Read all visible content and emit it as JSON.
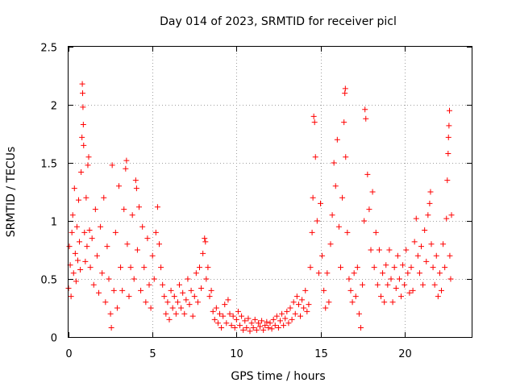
{
  "chart_data": {
    "type": "scatter",
    "title": "Day 014 of 2023, SRMTID for receiver picl",
    "xlabel": "GPS time / hours",
    "ylabel": "SRMTID / TECUs",
    "xlim": [
      0,
      24
    ],
    "ylim": [
      0,
      2.5
    ],
    "xticks": [
      0,
      5,
      10,
      15,
      20
    ],
    "xtick_labels": [
      "0",
      "5",
      "10",
      "15",
      "20"
    ],
    "yticks": [
      0,
      0.5,
      1,
      1.5,
      2,
      2.5
    ],
    "ytick_labels": [
      "0",
      "0.5",
      "1",
      "1.5",
      "2",
      "2.5"
    ],
    "grid": true,
    "marker": "+",
    "color": "#ff0000",
    "series": [
      {
        "name": "SRMTID",
        "points": [
          [
            0.0,
            0.42
          ],
          [
            0.05,
            0.78
          ],
          [
            0.1,
            0.62
          ],
          [
            0.15,
            0.35
          ],
          [
            0.2,
            0.9
          ],
          [
            0.25,
            1.05
          ],
          [
            0.3,
            0.55
          ],
          [
            0.35,
            1.28
          ],
          [
            0.4,
            0.72
          ],
          [
            0.45,
            0.48
          ],
          [
            0.5,
            0.95
          ],
          [
            0.55,
            0.66
          ],
          [
            0.6,
            1.18
          ],
          [
            0.65,
            0.82
          ],
          [
            0.7,
            0.58
          ],
          [
            0.75,
            1.42
          ],
          [
            0.8,
            1.72
          ],
          [
            0.82,
            2.18
          ],
          [
            0.84,
            2.1
          ],
          [
            0.86,
            1.98
          ],
          [
            0.88,
            1.83
          ],
          [
            0.9,
            1.65
          ],
          [
            0.95,
            0.9
          ],
          [
            1.0,
            0.65
          ],
          [
            1.05,
            1.2
          ],
          [
            1.1,
            0.78
          ],
          [
            1.15,
            1.48
          ],
          [
            1.2,
            1.55
          ],
          [
            1.25,
            0.92
          ],
          [
            1.3,
            0.6
          ],
          [
            1.4,
            0.85
          ],
          [
            1.5,
            0.45
          ],
          [
            1.6,
            1.1
          ],
          [
            1.7,
            0.7
          ],
          [
            1.8,
            0.38
          ],
          [
            1.9,
            0.95
          ],
          [
            2.0,
            0.55
          ],
          [
            2.1,
            1.2
          ],
          [
            2.2,
            0.3
          ],
          [
            2.3,
            0.78
          ],
          [
            2.4,
            0.5
          ],
          [
            2.5,
            0.2
          ],
          [
            2.55,
            0.08
          ],
          [
            2.6,
            1.48
          ],
          [
            2.7,
            0.4
          ],
          [
            2.8,
            0.9
          ],
          [
            2.9,
            0.25
          ],
          [
            3.0,
            1.3
          ],
          [
            3.1,
            0.6
          ],
          [
            3.2,
            0.4
          ],
          [
            3.3,
            1.1
          ],
          [
            3.4,
            1.45
          ],
          [
            3.45,
            1.52
          ],
          [
            3.5,
            0.8
          ],
          [
            3.6,
            0.35
          ],
          [
            3.7,
            0.6
          ],
          [
            3.8,
            1.05
          ],
          [
            3.9,
            0.5
          ],
          [
            4.0,
            1.35
          ],
          [
            4.05,
            1.28
          ],
          [
            4.1,
            0.75
          ],
          [
            4.2,
            1.12
          ],
          [
            4.3,
            0.4
          ],
          [
            4.4,
            0.95
          ],
          [
            4.5,
            0.6
          ],
          [
            4.6,
            0.3
          ],
          [
            4.7,
            0.85
          ],
          [
            4.8,
            0.45
          ],
          [
            4.9,
            0.25
          ],
          [
            5.0,
            0.7
          ],
          [
            5.1,
            0.5
          ],
          [
            5.2,
            0.9
          ],
          [
            5.3,
            1.12
          ],
          [
            5.4,
            0.8
          ],
          [
            5.5,
            0.6
          ],
          [
            5.6,
            0.45
          ],
          [
            5.7,
            0.35
          ],
          [
            5.8,
            0.2
          ],
          [
            5.9,
            0.3
          ],
          [
            6.0,
            0.15
          ],
          [
            6.1,
            0.4
          ],
          [
            6.2,
            0.25
          ],
          [
            6.3,
            0.35
          ],
          [
            6.4,
            0.2
          ],
          [
            6.5,
            0.3
          ],
          [
            6.6,
            0.45
          ],
          [
            6.7,
            0.25
          ],
          [
            6.8,
            0.38
          ],
          [
            6.9,
            0.2
          ],
          [
            7.0,
            0.32
          ],
          [
            7.1,
            0.5
          ],
          [
            7.2,
            0.28
          ],
          [
            7.3,
            0.4
          ],
          [
            7.4,
            0.18
          ],
          [
            7.5,
            0.35
          ],
          [
            7.6,
            0.55
          ],
          [
            7.7,
            0.3
          ],
          [
            7.8,
            0.6
          ],
          [
            7.9,
            0.42
          ],
          [
            8.0,
            0.72
          ],
          [
            8.1,
            0.85
          ],
          [
            8.15,
            0.82
          ],
          [
            8.2,
            0.5
          ],
          [
            8.3,
            0.6
          ],
          [
            8.4,
            0.35
          ],
          [
            8.5,
            0.4
          ],
          [
            8.6,
            0.22
          ],
          [
            8.7,
            0.15
          ],
          [
            8.8,
            0.25
          ],
          [
            8.9,
            0.12
          ],
          [
            9.0,
            0.2
          ],
          [
            9.1,
            0.08
          ],
          [
            9.2,
            0.18
          ],
          [
            9.3,
            0.28
          ],
          [
            9.4,
            0.12
          ],
          [
            9.5,
            0.32
          ],
          [
            9.6,
            0.2
          ],
          [
            9.7,
            0.1
          ],
          [
            9.8,
            0.18
          ],
          [
            9.9,
            0.08
          ],
          [
            10.0,
            0.15
          ],
          [
            10.1,
            0.22
          ],
          [
            10.2,
            0.1
          ],
          [
            10.3,
            0.18
          ],
          [
            10.4,
            0.06
          ],
          [
            10.5,
            0.14
          ],
          [
            10.6,
            0.08
          ],
          [
            10.7,
            0.16
          ],
          [
            10.8,
            0.05
          ],
          [
            10.9,
            0.12
          ],
          [
            11.0,
            0.08
          ],
          [
            11.1,
            0.15
          ],
          [
            11.2,
            0.06
          ],
          [
            11.3,
            0.12
          ],
          [
            11.4,
            0.09
          ],
          [
            11.5,
            0.14
          ],
          [
            11.6,
            0.06
          ],
          [
            11.7,
            0.1
          ],
          [
            11.8,
            0.13
          ],
          [
            11.9,
            0.08
          ],
          [
            12.0,
            0.12
          ],
          [
            12.1,
            0.07
          ],
          [
            12.2,
            0.15
          ],
          [
            12.3,
            0.1
          ],
          [
            12.4,
            0.18
          ],
          [
            12.5,
            0.08
          ],
          [
            12.6,
            0.14
          ],
          [
            12.7,
            0.2
          ],
          [
            12.8,
            0.1
          ],
          [
            12.9,
            0.16
          ],
          [
            13.0,
            0.22
          ],
          [
            13.1,
            0.12
          ],
          [
            13.2,
            0.25
          ],
          [
            13.3,
            0.15
          ],
          [
            13.4,
            0.3
          ],
          [
            13.5,
            0.2
          ],
          [
            13.6,
            0.35
          ],
          [
            13.7,
            0.28
          ],
          [
            13.8,
            0.18
          ],
          [
            13.9,
            0.32
          ],
          [
            14.0,
            0.25
          ],
          [
            14.1,
            0.4
          ],
          [
            14.2,
            0.22
          ],
          [
            14.3,
            0.28
          ],
          [
            14.4,
            0.6
          ],
          [
            14.5,
            0.9
          ],
          [
            14.55,
            1.2
          ],
          [
            14.6,
            1.9
          ],
          [
            14.65,
            1.85
          ],
          [
            14.7,
            1.55
          ],
          [
            14.8,
            1.0
          ],
          [
            14.9,
            0.55
          ],
          [
            15.0,
            1.15
          ],
          [
            15.1,
            0.7
          ],
          [
            15.2,
            0.4
          ],
          [
            15.3,
            0.25
          ],
          [
            15.4,
            0.55
          ],
          [
            15.5,
            0.3
          ],
          [
            15.6,
            0.8
          ],
          [
            15.7,
            1.05
          ],
          [
            15.8,
            1.5
          ],
          [
            15.9,
            1.3
          ],
          [
            16.0,
            1.7
          ],
          [
            16.1,
            0.95
          ],
          [
            16.2,
            0.6
          ],
          [
            16.3,
            1.2
          ],
          [
            16.4,
            1.85
          ],
          [
            16.45,
            2.1
          ],
          [
            16.48,
            2.14
          ],
          [
            16.5,
            1.55
          ],
          [
            16.6,
            0.9
          ],
          [
            16.7,
            0.5
          ],
          [
            16.8,
            0.4
          ],
          [
            16.9,
            0.3
          ],
          [
            17.0,
            0.55
          ],
          [
            17.1,
            0.35
          ],
          [
            17.2,
            0.6
          ],
          [
            17.3,
            0.2
          ],
          [
            17.4,
            0.08
          ],
          [
            17.5,
            0.45
          ],
          [
            17.6,
            1.0
          ],
          [
            17.65,
            1.96
          ],
          [
            17.7,
            1.88
          ],
          [
            17.8,
            1.4
          ],
          [
            17.9,
            1.1
          ],
          [
            18.0,
            0.75
          ],
          [
            18.1,
            1.25
          ],
          [
            18.2,
            0.6
          ],
          [
            18.3,
            0.9
          ],
          [
            18.4,
            0.45
          ],
          [
            18.5,
            0.75
          ],
          [
            18.6,
            0.35
          ],
          [
            18.7,
            0.55
          ],
          [
            18.8,
            0.3
          ],
          [
            18.9,
            0.62
          ],
          [
            19.0,
            0.45
          ],
          [
            19.1,
            0.75
          ],
          [
            19.2,
            0.5
          ],
          [
            19.3,
            0.3
          ],
          [
            19.4,
            0.6
          ],
          [
            19.5,
            0.42
          ],
          [
            19.6,
            0.7
          ],
          [
            19.7,
            0.5
          ],
          [
            19.8,
            0.35
          ],
          [
            19.9,
            0.62
          ],
          [
            20.0,
            0.45
          ],
          [
            20.1,
            0.75
          ],
          [
            20.2,
            0.55
          ],
          [
            20.3,
            0.38
          ],
          [
            20.4,
            0.6
          ],
          [
            20.5,
            0.4
          ],
          [
            20.6,
            0.82
          ],
          [
            20.7,
            1.02
          ],
          [
            20.8,
            0.7
          ],
          [
            20.9,
            0.55
          ],
          [
            21.0,
            0.78
          ],
          [
            21.1,
            0.45
          ],
          [
            21.2,
            0.92
          ],
          [
            21.3,
            0.65
          ],
          [
            21.4,
            1.05
          ],
          [
            21.5,
            1.15
          ],
          [
            21.55,
            1.25
          ],
          [
            21.6,
            0.8
          ],
          [
            21.7,
            0.6
          ],
          [
            21.8,
            0.45
          ],
          [
            21.9,
            0.7
          ],
          [
            22.0,
            0.35
          ],
          [
            22.1,
            0.55
          ],
          [
            22.2,
            0.4
          ],
          [
            22.3,
            0.8
          ],
          [
            22.4,
            0.6
          ],
          [
            22.5,
            1.02
          ],
          [
            22.55,
            1.35
          ],
          [
            22.6,
            1.58
          ],
          [
            22.62,
            1.72
          ],
          [
            22.65,
            1.82
          ],
          [
            22.68,
            1.95
          ],
          [
            22.7,
            0.7
          ],
          [
            22.75,
            0.5
          ],
          [
            22.8,
            1.05
          ]
        ]
      }
    ]
  }
}
